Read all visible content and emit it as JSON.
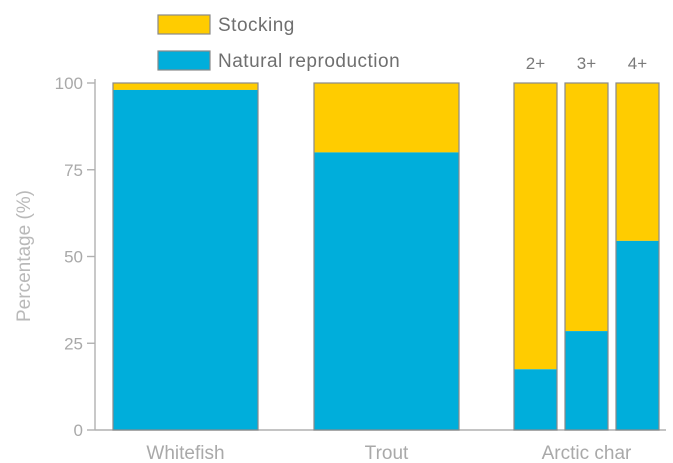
{
  "chart_data": {
    "type": "bar",
    "stacked": true,
    "ylabel": "Percentage (%)",
    "ylim": [
      0,
      100
    ],
    "yticks": [
      0,
      25,
      50,
      75,
      100
    ],
    "grid": false,
    "legend_position": "top",
    "colors": {
      "Natural reproduction": "#00aedb",
      "Stocking": "#ffcc00",
      "bar_border": "#8a8a8a",
      "axis": "#b0b0b0"
    },
    "bars": [
      {
        "group": "Whitefish",
        "label": "",
        "natural": 98,
        "stocking": 2
      },
      {
        "group": "Trout",
        "label": "",
        "natural": 80,
        "stocking": 20
      },
      {
        "group": "Arctic char",
        "label": "2+",
        "natural": 17.5,
        "stocking": 82.5
      },
      {
        "group": "Arctic char",
        "label": "3+",
        "natural": 28.5,
        "stocking": 71.5
      },
      {
        "group": "Arctic char",
        "label": "4+",
        "natural": 54.5,
        "stocking": 45.5
      }
    ],
    "categories": [
      "Whitefish",
      "Trout",
      "Arctic char"
    ],
    "series": [
      {
        "name": "Stocking"
      },
      {
        "name": "Natural reproduction"
      }
    ]
  }
}
